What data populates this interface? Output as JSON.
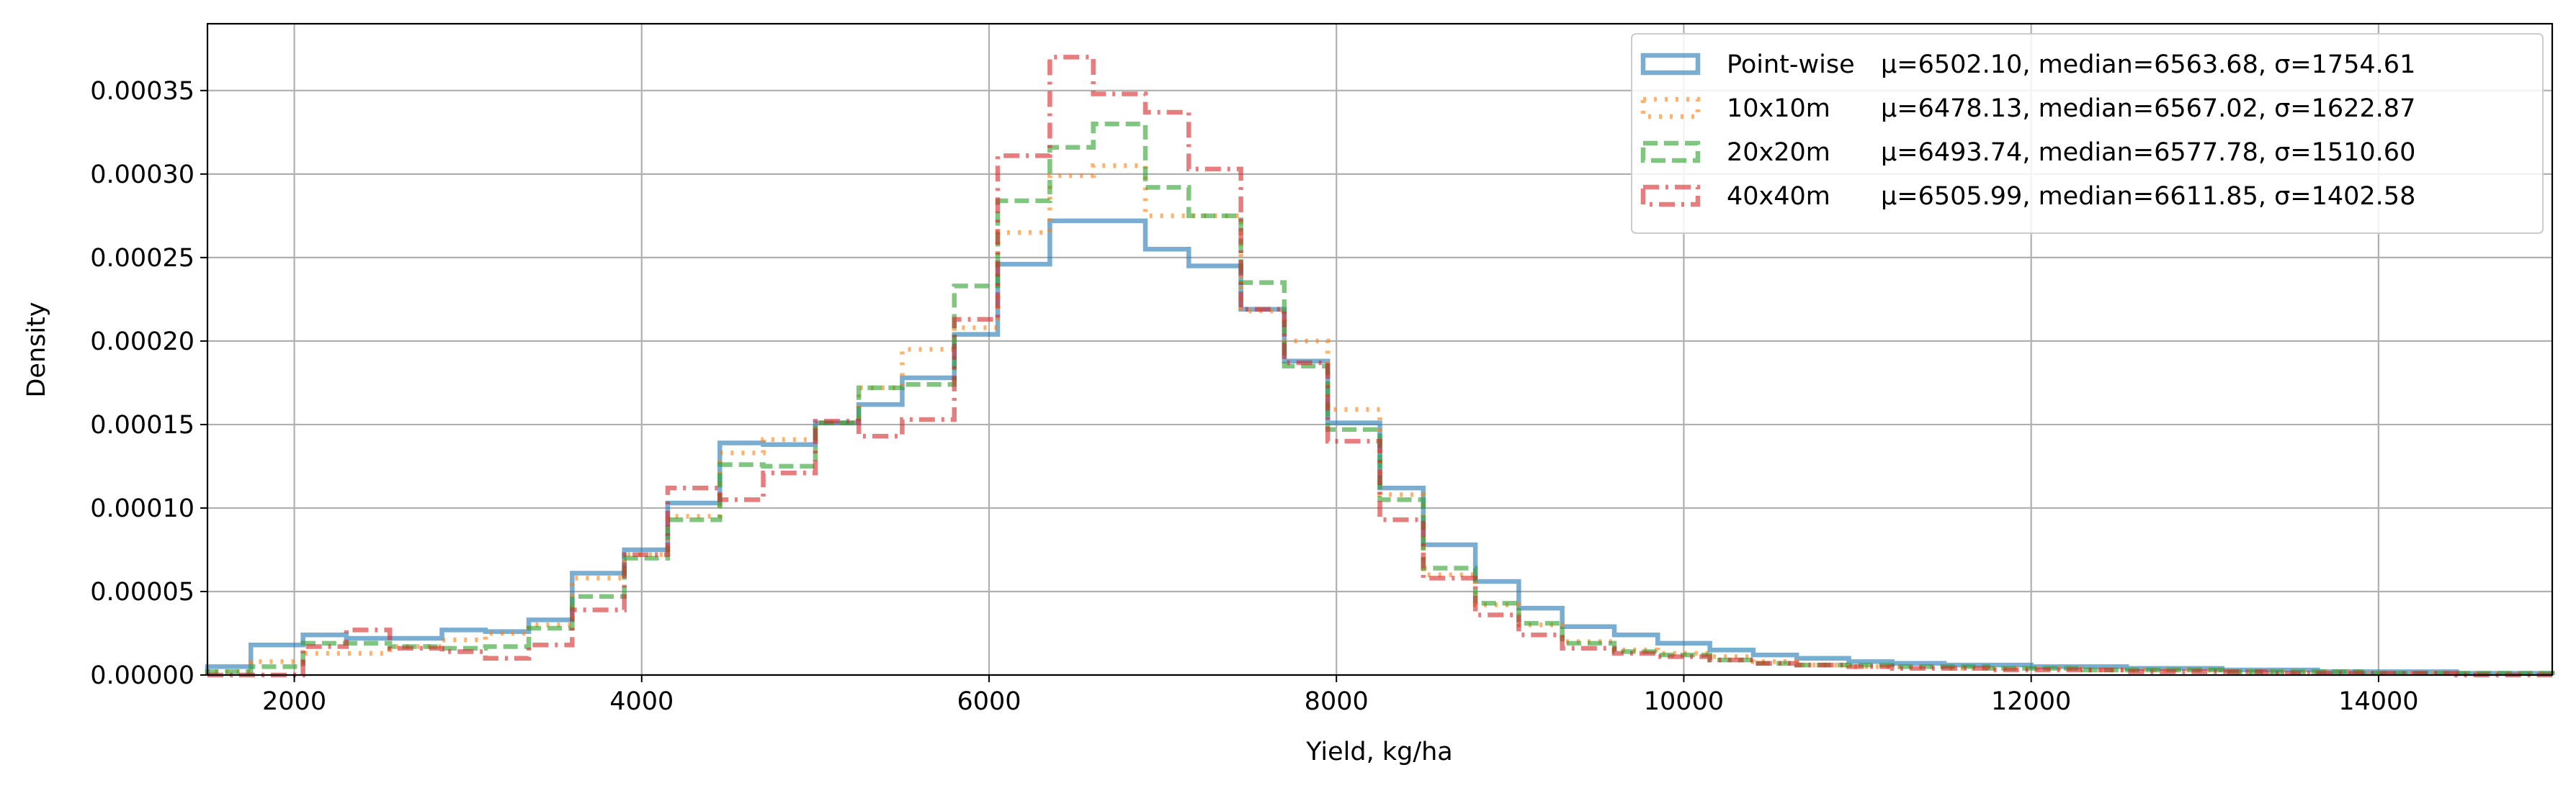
{
  "chart_data": {
    "type": "histogram",
    "title": "",
    "xlabel": "Yield, kg/ha",
    "ylabel": "Density",
    "xlim": [
      1500,
      15000
    ],
    "ylim": [
      0,
      0.00039
    ],
    "grid": true,
    "legend_position": "top-right",
    "xticks": [
      2000,
      4000,
      6000,
      8000,
      10000,
      12000,
      14000
    ],
    "xtick_labels": [
      "2000",
      "4000",
      "6000",
      "8000",
      "10000",
      "12000",
      "14000"
    ],
    "yticks": [
      0,
      5e-05,
      0.0001,
      0.00015,
      0.0002,
      0.00025,
      0.0003,
      0.00035
    ],
    "ytick_labels": [
      "0.00000",
      "0.00005",
      "0.00010",
      "0.00015",
      "0.00020",
      "0.00025",
      "0.00030",
      "0.00035"
    ],
    "bin_edges": [
      1500,
      1750,
      2050,
      2300,
      2550,
      2850,
      3100,
      3350,
      3600,
      3900,
      4150,
      4450,
      4700,
      5000,
      5250,
      5500,
      5800,
      6050,
      6350,
      6600,
      6900,
      7150,
      7450,
      7700,
      7950,
      8250,
      8500,
      8800,
      9050,
      9300,
      9600,
      9850,
      10150,
      10400,
      10650,
      10950,
      11200,
      11500,
      11750,
      12000,
      12300,
      12550,
      12800,
      13100,
      13350,
      13650,
      13900,
      14150,
      14450,
      14700,
      15000
    ],
    "series": [
      {
        "name": "Point-wise",
        "stats": "μ=6502.10, median=6563.68, σ=1754.61",
        "color": "#1f77b4",
        "linestyle": "solid",
        "values": [
          5e-06,
          1.8e-05,
          2.4e-05,
          2.2e-05,
          2.2e-05,
          2.7e-05,
          2.6e-05,
          3.3e-05,
          6.1e-05,
          7.5e-05,
          0.000103,
          0.000139,
          0.000138,
          0.000151,
          0.000162,
          0.000178,
          0.000204,
          0.000246,
          0.000272,
          0.000272,
          0.000255,
          0.000245,
          0.000219,
          0.000188,
          0.000151,
          0.000112,
          7.8e-05,
          5.6e-05,
          4e-05,
          2.9e-05,
          2.4e-05,
          1.9e-05,
          1.5e-05,
          1.2e-05,
          1e-05,
          8e-06,
          7e-06,
          6e-06,
          6e-06,
          5e-06,
          5e-06,
          4e-06,
          4e-06,
          3e-06,
          3e-06,
          2e-06,
          2e-06,
          2e-06,
          1e-06,
          1e-06
        ]
      },
      {
        "name": "10x10m",
        "stats": "μ=6478.13, median=6567.02, σ=1622.87",
        "color": "#ff7f0e",
        "linestyle": "dotted",
        "values": [
          2e-06,
          8e-06,
          1.3e-05,
          1.3e-05,
          1.7e-05,
          2.1e-05,
          2.5e-05,
          3e-05,
          5.8e-05,
          7.2e-05,
          9.5e-05,
          0.000133,
          0.000141,
          0.000151,
          0.000172,
          0.000195,
          0.000208,
          0.000265,
          0.000299,
          0.000305,
          0.000275,
          0.000275,
          0.000218,
          0.0002,
          0.000159,
          0.000108,
          6e-05,
          4.2e-05,
          3e-05,
          2e-05,
          1.5e-05,
          1.3e-05,
          1.1e-05,
          8e-06,
          6e-06,
          5e-06,
          5e-06,
          4e-06,
          4e-06,
          4e-06,
          3e-06,
          3e-06,
          3e-06,
          2e-06,
          2e-06,
          2e-06,
          1e-06,
          1e-06,
          1e-06,
          1e-06
        ]
      },
      {
        "name": "20x20m",
        "stats": "μ=6493.74, median=6577.78, σ=1510.60",
        "color": "#2ca02c",
        "linestyle": "dashed",
        "values": [
          2e-06,
          5e-06,
          1.9e-05,
          1.9e-05,
          1.7e-05,
          1.6e-05,
          1.7e-05,
          2.8e-05,
          4.7e-05,
          7e-05,
          9.3e-05,
          0.000126,
          0.000125,
          0.000151,
          0.000172,
          0.000174,
          0.000233,
          0.000284,
          0.000316,
          0.00033,
          0.000292,
          0.000275,
          0.000235,
          0.000185,
          0.000147,
          0.000105,
          6.4e-05,
          4.3e-05,
          3.1e-05,
          1.9e-05,
          1.4e-05,
          1.2e-05,
          9e-06,
          7e-06,
          6e-06,
          6e-06,
          5e-06,
          5e-06,
          4e-06,
          4e-06,
          3e-06,
          3e-06,
          3e-06,
          2e-06,
          2e-06,
          2e-06,
          1e-06,
          1e-06,
          1e-06,
          1e-06
        ]
      },
      {
        "name": "40x40m",
        "stats": "μ=6505.99, median=6611.85, σ=1402.58",
        "color": "#d62728",
        "linestyle": "dashdot",
        "values": [
          0.0,
          0.0,
          1.7e-05,
          2.7e-05,
          1.6e-05,
          1.4e-05,
          1e-05,
          1.8e-05,
          3.9e-05,
          7.2e-05,
          0.000112,
          0.000105,
          0.000121,
          0.000152,
          0.000143,
          0.000153,
          0.000213,
          0.000311,
          0.00037,
          0.000348,
          0.000337,
          0.000303,
          0.000219,
          0.000187,
          0.00014,
          9.3e-05,
          5.8e-05,
          3.6e-05,
          2.4e-05,
          1.6e-05,
          1.3e-05,
          1.1e-05,
          9e-06,
          7e-06,
          6e-06,
          5e-06,
          4e-06,
          4e-06,
          3e-06,
          3e-06,
          3e-06,
          2e-06,
          2e-06,
          2e-06,
          1e-06,
          1e-06,
          1e-06,
          1e-06,
          0.0,
          0.0
        ]
      }
    ]
  }
}
